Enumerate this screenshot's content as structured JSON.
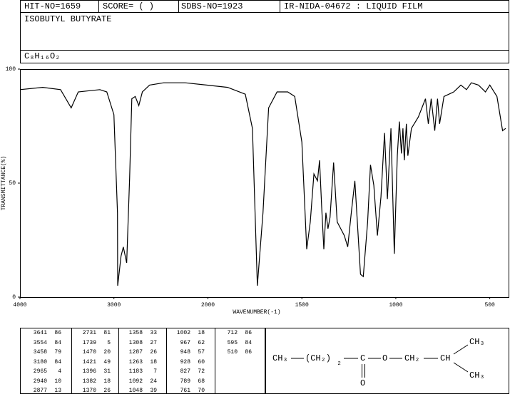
{
  "header": {
    "hit_no": "HIT-NO=1659",
    "score": "SCORE= (    )",
    "sdbs_no": "SDBS-NO=1923",
    "method": "IR-NIDA-04672 : LIQUID FILM",
    "name": "ISOBUTYL BUTYRATE",
    "formula": "C₈H₁₆O₂"
  },
  "chart_data": {
    "type": "line",
    "xlabel": "WAVENUMBER(-1)",
    "ylabel": "TRANSMITTANCE(%)",
    "color": "#000000",
    "xlim": [
      4000,
      400
    ],
    "xscale_break": 2000,
    "xticks": [
      4000,
      3000,
      2000,
      1500,
      1000,
      500
    ],
    "ylim": [
      0,
      100
    ],
    "yticks": [
      0,
      50,
      100
    ],
    "x": [
      4000,
      3758,
      3568,
      3455,
      3380,
      3150,
      3076,
      3000,
      2962,
      2960,
      2924,
      2900,
      2864,
      2833,
      2810,
      2773,
      2735,
      2697,
      2621,
      2470,
      2242,
      2015,
      1895,
      1801,
      1763,
      1737,
      1707,
      1677,
      1632,
      1575,
      1538,
      1500,
      1474,
      1455,
      1436,
      1417,
      1406,
      1395,
      1383,
      1372,
      1361,
      1350,
      1331,
      1312,
      1293,
      1274,
      1256,
      1237,
      1218,
      1188,
      1173,
      1150,
      1135,
      1117,
      1098,
      1079,
      1060,
      1045,
      1026,
      1008,
      992,
      981,
      970,
      962,
      955,
      944,
      936,
      917,
      880,
      842,
      827,
      812,
      793,
      778,
      767,
      744,
      692,
      654,
      624,
      598,
      560,
      523,
      500,
      462,
      432,
      415
    ],
    "values": [
      91,
      92,
      91,
      83,
      90,
      91,
      90,
      80,
      37,
      5,
      18,
      22,
      15,
      52,
      87,
      88,
      84,
      90,
      93,
      94,
      94,
      93,
      92,
      89,
      74,
      5,
      37,
      83,
      90,
      90,
      88,
      68,
      21,
      33,
      54,
      51,
      60,
      40,
      21,
      37,
      30,
      35,
      59,
      33,
      30,
      27,
      22,
      37,
      51,
      10,
      9,
      33,
      58,
      49,
      27,
      44,
      72,
      43,
      74,
      19,
      62,
      77,
      63,
      74,
      60,
      76,
      62,
      74,
      79,
      87,
      76,
      87,
      73,
      87,
      76,
      88,
      90,
      93,
      91,
      94,
      93,
      90,
      93,
      88,
      73,
      74
    ]
  },
  "peaks": {
    "wavenumbers": [
      "3641",
      "3554",
      "3458",
      "3180",
      "2965",
      "2940",
      "2877",
      "2731",
      "1739",
      "1470",
      "1421",
      "1396",
      "1382",
      "1370",
      "1358",
      "1308",
      "1287",
      "1263",
      "1183",
      "1092",
      "1048",
      "1002",
      "967",
      "948",
      "928",
      "827",
      "789",
      "761",
      "712",
      "595",
      "510"
    ],
    "transmittance": [
      "86",
      "84",
      "79",
      "84",
      "4",
      "10",
      "13",
      "81",
      "5",
      "20",
      "49",
      "31",
      "18",
      "26",
      "33",
      "27",
      "26",
      "18",
      "7",
      "24",
      "39",
      "18",
      "62",
      "57",
      "60",
      "72",
      "68",
      "70",
      "86",
      "84",
      "86"
    ]
  },
  "structure": {
    "labels": [
      "CH₃",
      "(CH₂)",
      "₂",
      "C",
      "O",
      "O",
      "CH₂",
      "CH",
      "CH₃",
      "CH₃"
    ]
  }
}
